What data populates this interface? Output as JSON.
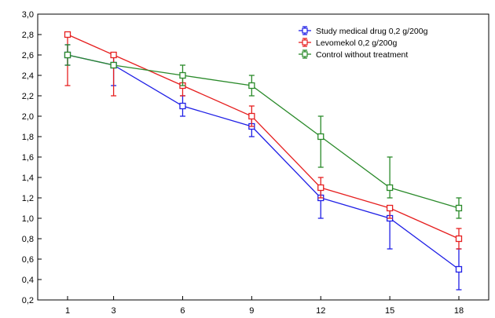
{
  "chart_data": {
    "type": "line",
    "title": "",
    "xlabel": "",
    "ylabel": "",
    "x": [
      1,
      3,
      6,
      9,
      12,
      15,
      18
    ],
    "x_tick_labels": [
      "1",
      "3",
      "6",
      "9",
      "12",
      "15",
      "18"
    ],
    "ylim": [
      0.2,
      3.0
    ],
    "y_tick_labels": [
      "0,2",
      "0,4",
      "0,6",
      "0,8",
      "1,0",
      "1,2",
      "1,4",
      "1,6",
      "1,8",
      "2,0",
      "2,2",
      "2,4",
      "2,6",
      "2,8",
      "3,0"
    ],
    "grid": false,
    "legend_position": "top-right",
    "series": [
      {
        "name": "Study medical drug 0,2 g/200g",
        "color": "#1f1fe6",
        "values": [
          2.6,
          2.5,
          2.1,
          1.9,
          1.2,
          1.0,
          0.5
        ],
        "error_low": [
          2.5,
          2.3,
          2.0,
          1.8,
          1.0,
          0.7,
          0.3
        ],
        "error_high": [
          2.7,
          2.6,
          2.2,
          2.0,
          1.3,
          1.1,
          0.7
        ]
      },
      {
        "name": "Levomekol 0,2 g/200g",
        "color": "#e61f1f",
        "values": [
          2.8,
          2.6,
          2.3,
          2.0,
          1.3,
          1.1,
          0.8
        ],
        "error_low": [
          2.3,
          2.2,
          2.2,
          1.9,
          1.2,
          1.0,
          0.7
        ],
        "error_high": [
          2.8,
          2.6,
          2.4,
          2.1,
          1.4,
          1.1,
          0.9
        ]
      },
      {
        "name": "Control without treatment",
        "color": "#2a8a2a",
        "values": [
          2.6,
          2.5,
          2.4,
          2.3,
          1.8,
          1.3,
          1.1
        ],
        "error_low": [
          2.5,
          2.5,
          2.3,
          2.2,
          1.5,
          1.2,
          1.0
        ],
        "error_high": [
          2.7,
          2.5,
          2.5,
          2.4,
          2.0,
          1.6,
          1.2
        ]
      }
    ]
  }
}
